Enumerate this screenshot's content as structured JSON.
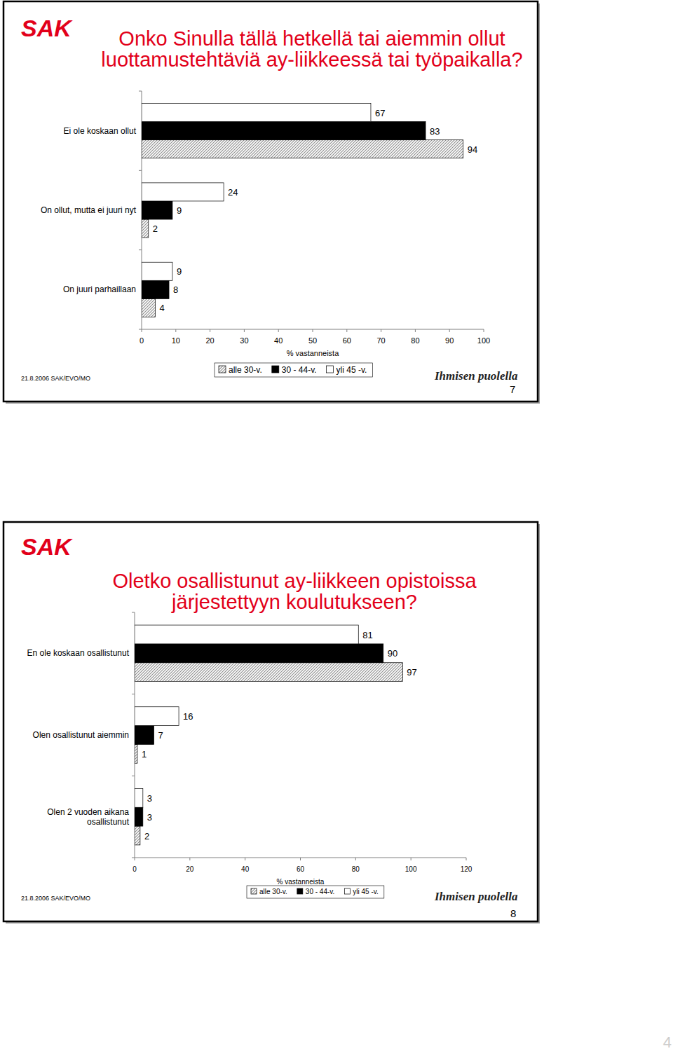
{
  "chart_data": [
    {
      "type": "bar",
      "orientation": "horizontal",
      "data_labels": true,
      "legend": "bottom",
      "grid": false,
      "title": "Onko Sinulla tällä hetkellä tai aiemmin ollut luottamustehtäviä ay-liikkeessä tai työpaikalla?",
      "x_label": "% vastanneista",
      "categories": [
        "Ei ole koskaan ollut",
        "On ollut, mutta ei juuri nyt",
        "On juuri parhaillaan"
      ],
      "series": [
        {
          "name": "alle 30-v.",
          "color": "#8c8c8c",
          "values": [
            94,
            2,
            4
          ]
        },
        {
          "name": "30 - 44-v.",
          "color": "#000000",
          "values": [
            83,
            9,
            8
          ]
        },
        {
          "name": "yli 45 -v.",
          "color": "#ffffff",
          "values": [
            67,
            24,
            9
          ]
        }
      ],
      "xlim": [
        0,
        100
      ],
      "xticks": [
        0,
        10,
        20,
        30,
        40,
        50,
        60,
        70,
        80,
        90,
        100
      ],
      "annotations": [
        "SAK",
        "21.8.2006 SAK/EVO/MO",
        "Ihmisen puolella",
        "7"
      ]
    },
    {
      "type": "bar",
      "orientation": "horizontal",
      "data_labels": true,
      "legend": "bottom",
      "grid": false,
      "title": "Oletko osallistunut ay-liikkeen opistoissa järjestettyyn koulutukseen?",
      "x_label": "% vastanneista",
      "categories": [
        "En ole koskaan osallistunut",
        "Olen osallistunut aiemmin",
        "Olen 2 vuoden aikana osallistunut"
      ],
      "series": [
        {
          "name": "alle 30-v.",
          "color": "#8c8c8c",
          "values": [
            97,
            1,
            2
          ]
        },
        {
          "name": "30 - 44-v.",
          "color": "#000000",
          "values": [
            90,
            7,
            3
          ]
        },
        {
          "name": "yli 45 -v.",
          "color": "#ffffff",
          "values": [
            81,
            16,
            3
          ]
        }
      ],
      "xlim": [
        0,
        120
      ],
      "xticks": [
        0,
        20,
        40,
        60,
        80,
        100,
        120
      ],
      "annotations": [
        "SAK",
        "21.8.2006 SAK/EVO/MO",
        "Ihmisen puolella",
        "8"
      ]
    }
  ],
  "page_number": 4
}
